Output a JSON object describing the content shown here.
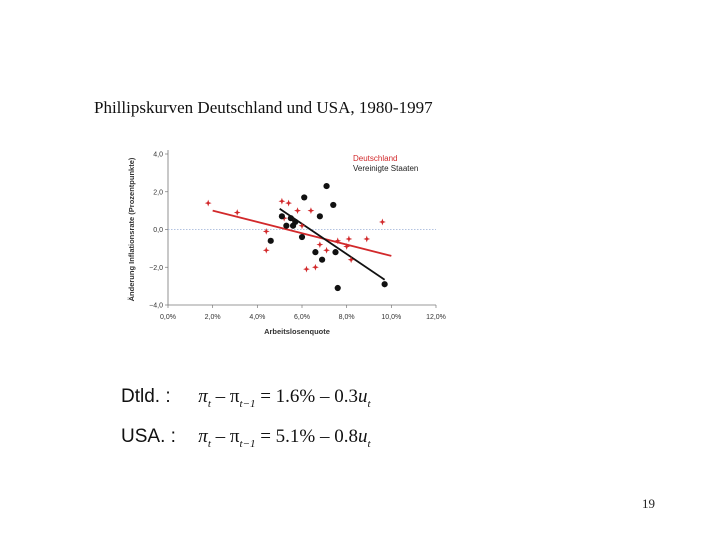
{
  "slide": {
    "title": "Phillipskurven Deutschland und USA, 1980-1997",
    "page_number": "19"
  },
  "equations": [
    {
      "country": "Dtld. :",
      "lhs": "π",
      "sub_t": "t",
      "minus": " – π",
      "sub_t1": "t−1",
      "rhs": " = 1.6% – 0.3",
      "u": "u",
      "sub_u": "t"
    },
    {
      "country": "USA. :",
      "lhs": "π",
      "sub_t": "t",
      "minus": " – π",
      "sub_t1": "t−1",
      "rhs": " = 5.1% – 0.8",
      "u": "u",
      "sub_u": "t"
    }
  ],
  "colors": {
    "germany": "#d2292b",
    "usa": "#111111",
    "zero_line": "#9ab0d6"
  },
  "chart_data": {
    "type": "scatter",
    "xlabel": "Arbeitslosenquote",
    "ylabel": "Änderung Inflationsrate (Prozentpunkte)",
    "xlim": [
      0,
      12
    ],
    "ylim": [
      -4,
      4
    ],
    "x_ticks": [
      0,
      2,
      4,
      6,
      8,
      10,
      12
    ],
    "x_tick_labels": [
      "0,0%",
      "2,0%",
      "4,0%",
      "6,0%",
      "8,0%",
      "10,0%",
      "12,0%"
    ],
    "y_ticks": [
      4,
      2,
      0,
      -2,
      -4
    ],
    "y_tick_labels": [
      "4,0",
      "2,0",
      "0,0",
      "−2,0",
      "−4,0"
    ],
    "legend_position": "top-right",
    "series": [
      {
        "name": "Deutschland",
        "marker": "star",
        "points": [
          [
            1.8,
            1.4
          ],
          [
            3.1,
            0.9
          ],
          [
            4.4,
            -0.1
          ],
          [
            4.4,
            -1.1
          ],
          [
            5.1,
            1.5
          ],
          [
            5.4,
            1.4
          ],
          [
            5.8,
            1.0
          ],
          [
            5.6,
            0.5
          ],
          [
            6.4,
            1.0
          ],
          [
            6.2,
            -2.1
          ],
          [
            6.6,
            -2.0
          ],
          [
            6.8,
            -0.8
          ],
          [
            7.1,
            -1.1
          ],
          [
            7.6,
            -0.6
          ],
          [
            8.1,
            -0.5
          ],
          [
            8.0,
            -0.9
          ],
          [
            8.2,
            -1.6
          ],
          [
            8.9,
            -0.5
          ],
          [
            9.6,
            0.4
          ],
          [
            5.2,
            0.6
          ],
          [
            6.0,
            0.2
          ]
        ],
        "fit": {
          "intercept": 1.6,
          "slope": -0.3,
          "x_range": [
            2.0,
            10.0
          ]
        }
      },
      {
        "name": "Vereinigte Staaten",
        "marker": "circle",
        "points": [
          [
            4.6,
            -0.6
          ],
          [
            5.1,
            0.7
          ],
          [
            5.3,
            0.2
          ],
          [
            5.5,
            0.6
          ],
          [
            5.6,
            0.2
          ],
          [
            5.7,
            0.4
          ],
          [
            6.0,
            -0.4
          ],
          [
            6.1,
            1.7
          ],
          [
            6.6,
            -1.2
          ],
          [
            6.8,
            0.7
          ],
          [
            6.9,
            -1.6
          ],
          [
            7.1,
            2.3
          ],
          [
            7.4,
            1.3
          ],
          [
            7.5,
            -1.2
          ],
          [
            7.6,
            -3.1
          ],
          [
            9.7,
            -2.9
          ]
        ],
        "fit": {
          "intercept": 5.1,
          "slope": -0.8,
          "x_range": [
            5.0,
            9.7
          ]
        }
      }
    ]
  }
}
